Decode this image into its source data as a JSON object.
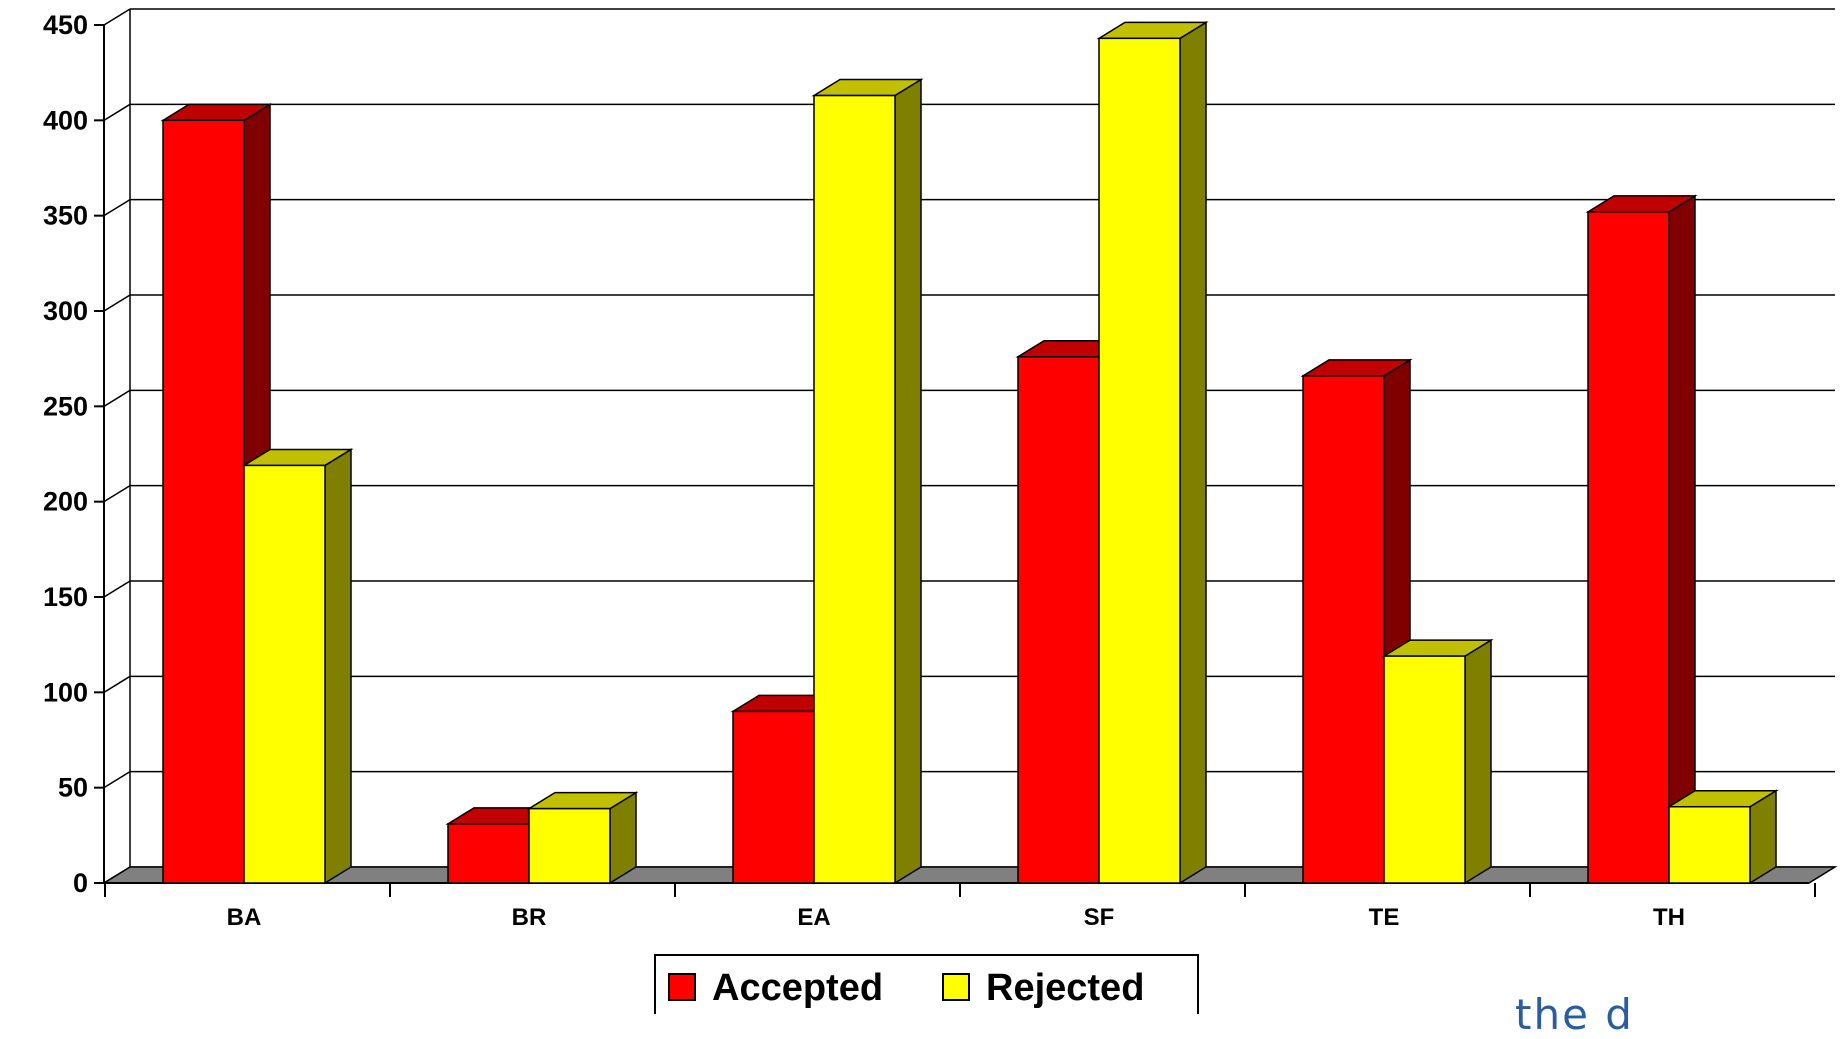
{
  "chart_data": {
    "type": "bar",
    "title": "",
    "xlabel": "",
    "ylabel": "",
    "categories": [
      "BA",
      "BR",
      "EA",
      "SF",
      "TE",
      "TH"
    ],
    "series": [
      {
        "name": "Accepted",
        "values": [
          400,
          31,
          90,
          276,
          266,
          352
        ]
      },
      {
        "name": "Rejected",
        "values": [
          219,
          39,
          413,
          443,
          119,
          40
        ]
      }
    ],
    "ylim": [
      0,
      450
    ],
    "yticks": [
      "0",
      "50",
      "100",
      "150",
      "200",
      "250",
      "300",
      "350",
      "400",
      "450"
    ],
    "grid": true,
    "legend": "bottom-center",
    "style": "3d-clustered-column"
  },
  "colors": {
    "accepted_front": "#ff0000",
    "accepted_top": "#c00000",
    "accepted_side": "#800000",
    "rejected_front": "#ffff00",
    "rejected_top": "#c0c000",
    "rejected_side": "#808000",
    "floor": "#808080",
    "gridline": "#000000"
  },
  "logo_fragment": "the d"
}
